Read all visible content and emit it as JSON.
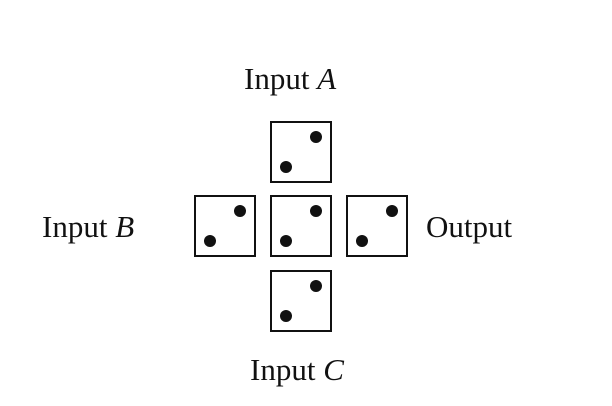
{
  "labels": {
    "input_a": {
      "word": "Input",
      "var": "A"
    },
    "input_b": {
      "word": "Input",
      "var": "B"
    },
    "input_c": {
      "word": "Input",
      "var": "C"
    },
    "output": "Output"
  },
  "ink_color": "#111111"
}
